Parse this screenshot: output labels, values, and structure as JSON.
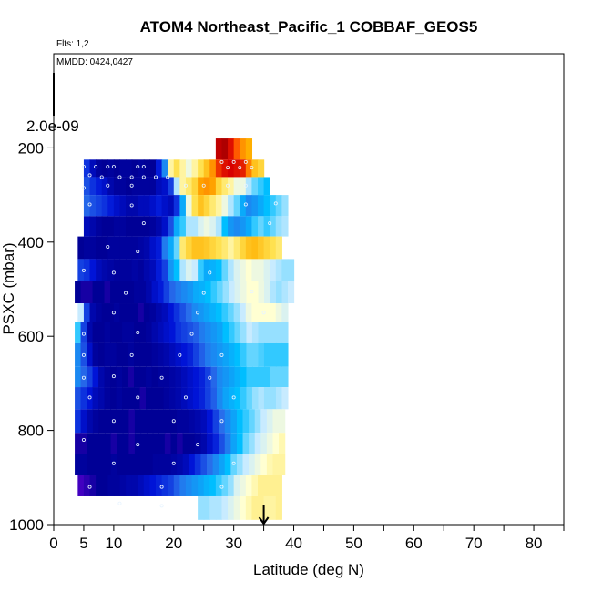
{
  "chart_data": {
    "type": "heatmap",
    "title": "ATOM4 Northeast_Pacific_1 COBBAF_GEOS5",
    "flights_label": "Flts: 1,2",
    "dates_label": "MMDD: 0424,0427",
    "scale_label": "2.0e-09",
    "xlabel": "Latitude (deg N)",
    "ylabel": "PSXC (mbar)",
    "xlim": [
      0,
      85
    ],
    "ylim": [
      1000,
      0
    ],
    "x_ticks": [
      0,
      5,
      10,
      20,
      30,
      40,
      50,
      60,
      70,
      80
    ],
    "y_ticks": [
      200,
      400,
      600,
      800,
      1000
    ],
    "marker_arrow_lat": 35,
    "colormap": "blue-white-yellow-red",
    "value_range": [
      0,
      1
    ],
    "pressure_bands": [
      {
        "p_top": 180,
        "p_bottom": 225,
        "lat_from": 27,
        "lat_to": 33,
        "values": [
          0.95,
          0.97,
          0.9,
          0.8,
          0.72,
          0.68
        ]
      },
      {
        "p_top": 225,
        "p_bottom": 262,
        "lat_from": 5,
        "lat_to": 35,
        "values": [
          0.18,
          0.1,
          0.06,
          0.05,
          0.06,
          0.05,
          0.06,
          0.06,
          0.05,
          0.06,
          0.05,
          0.05,
          0.15,
          0.3,
          0.55,
          0.6,
          0.55,
          0.5,
          0.55,
          0.6,
          0.65,
          0.72,
          0.85,
          0.9,
          0.92,
          0.9,
          0.88,
          0.75,
          0.65,
          0.62
        ]
      },
      {
        "p_top": 262,
        "p_bottom": 300,
        "lat_from": 5,
        "lat_to": 36,
        "values": [
          0.22,
          0.18,
          0.15,
          0.12,
          0.08,
          0.06,
          0.06,
          0.05,
          0.06,
          0.06,
          0.06,
          0.06,
          0.1,
          0.12,
          0.2,
          0.45,
          0.55,
          0.58,
          0.62,
          0.7,
          0.72,
          0.7,
          0.62,
          0.58,
          0.55,
          0.5,
          0.5,
          0.45,
          0.42,
          0.4,
          0.38
        ]
      },
      {
        "p_top": 300,
        "p_bottom": 345,
        "lat_from": 5,
        "lat_to": 39,
        "values": [
          0.25,
          0.22,
          0.2,
          0.18,
          0.15,
          0.12,
          0.1,
          0.08,
          0.08,
          0.1,
          0.1,
          0.12,
          0.15,
          0.12,
          0.1,
          0.18,
          0.35,
          0.5,
          0.6,
          0.65,
          0.62,
          0.58,
          0.55,
          0.5,
          0.45,
          0.42,
          0.35,
          0.3,
          0.32,
          0.35,
          0.38,
          0.4,
          0.42,
          0.44
        ]
      },
      {
        "p_top": 345,
        "p_bottom": 388,
        "lat_from": 5,
        "lat_to": 39,
        "values": [
          0.1,
          0.08,
          0.06,
          0.05,
          0.05,
          0.06,
          0.06,
          0.05,
          0.05,
          0.05,
          0.05,
          0.06,
          0.08,
          0.12,
          0.22,
          0.35,
          0.4,
          0.45,
          0.45,
          0.48,
          0.5,
          0.48,
          0.45,
          0.38,
          0.32,
          0.3,
          0.32,
          0.35,
          0.4,
          0.42,
          0.4,
          0.42,
          0.44,
          0.45
        ]
      },
      {
        "p_top": 388,
        "p_bottom": 436,
        "lat_from": 4,
        "lat_to": 38,
        "values": [
          0.05,
          0.06,
          0.06,
          0.05,
          0.05,
          0.06,
          0.06,
          0.06,
          0.06,
          0.06,
          0.07,
          0.08,
          0.12,
          0.15,
          0.28,
          0.35,
          0.42,
          0.58,
          0.62,
          0.65,
          0.65,
          0.64,
          0.62,
          0.6,
          0.58,
          0.55,
          0.58,
          0.62,
          0.65,
          0.66,
          0.64,
          0.62,
          0.6,
          0.58
        ]
      },
      {
        "p_top": 436,
        "p_bottom": 482,
        "lat_from": 4,
        "lat_to": 40,
        "values": [
          0.2,
          0.18,
          0.14,
          0.1,
          0.08,
          0.07,
          0.06,
          0.06,
          0.06,
          0.07,
          0.06,
          0.08,
          0.1,
          0.15,
          0.2,
          0.32,
          0.38,
          0.45,
          0.48,
          0.46,
          0.4,
          0.35,
          0.36,
          0.38,
          0.42,
          0.45,
          0.48,
          0.5,
          0.52,
          0.5,
          0.5,
          0.48,
          0.46,
          0.45,
          0.44,
          0.44
        ]
      },
      {
        "p_top": 482,
        "p_bottom": 530,
        "lat_from": 3.5,
        "lat_to": 40,
        "values": [
          0.05,
          0.04,
          0.04,
          0.05,
          0.05,
          0.04,
          0.05,
          0.05,
          0.05,
          0.05,
          0.06,
          0.06,
          0.08,
          0.12,
          0.15,
          0.2,
          0.25,
          0.28,
          0.3,
          0.32,
          0.35,
          0.36,
          0.38,
          0.4,
          0.42,
          0.44,
          0.46,
          0.48,
          0.5,
          0.52,
          0.52,
          0.5,
          0.48,
          0.45,
          0.44,
          0.45,
          0.46
        ]
      },
      {
        "p_top": 530,
        "p_bottom": 570,
        "lat_from": 4,
        "lat_to": 39,
        "values": [
          0.46,
          0.2,
          0.08,
          0.06,
          0.05,
          0.05,
          0.06,
          0.05,
          0.05,
          0.05,
          0.04,
          0.05,
          0.06,
          0.08,
          0.1,
          0.14,
          0.18,
          0.22,
          0.26,
          0.3,
          0.32,
          0.34,
          0.36,
          0.38,
          0.4,
          0.42,
          0.44,
          0.46,
          0.5,
          0.52,
          0.52,
          0.52,
          0.52,
          0.5,
          0.48
        ]
      },
      {
        "p_top": 570,
        "p_bottom": 615,
        "lat_from": 3.5,
        "lat_to": 39,
        "values": [
          0.4,
          0.2,
          0.08,
          0.05,
          0.05,
          0.06,
          0.05,
          0.05,
          0.06,
          0.06,
          0.05,
          0.05,
          0.06,
          0.08,
          0.1,
          0.12,
          0.14,
          0.18,
          0.2,
          0.22,
          0.24,
          0.28,
          0.3,
          0.32,
          0.34,
          0.38,
          0.4,
          0.42,
          0.44,
          0.46,
          0.45,
          0.44,
          0.44,
          0.44,
          0.44,
          0.44
        ]
      },
      {
        "p_top": 615,
        "p_bottom": 665,
        "lat_from": 3.5,
        "lat_to": 39,
        "values": [
          0.3,
          0.22,
          0.12,
          0.06,
          0.05,
          0.06,
          0.06,
          0.05,
          0.05,
          0.06,
          0.05,
          0.05,
          0.05,
          0.06,
          0.07,
          0.08,
          0.1,
          0.12,
          0.14,
          0.16,
          0.2,
          0.24,
          0.28,
          0.3,
          0.32,
          0.34,
          0.36,
          0.38,
          0.4,
          0.42,
          0.42,
          0.41,
          0.4,
          0.4,
          0.4,
          0.4
        ]
      },
      {
        "p_top": 665,
        "p_bottom": 708,
        "lat_from": 3.5,
        "lat_to": 39,
        "values": [
          0.3,
          0.25,
          0.2,
          0.14,
          0.08,
          0.06,
          0.05,
          0.06,
          0.05,
          0.04,
          0.05,
          0.05,
          0.06,
          0.05,
          0.06,
          0.06,
          0.07,
          0.08,
          0.1,
          0.12,
          0.14,
          0.16,
          0.2,
          0.25,
          0.3,
          0.32,
          0.34,
          0.36,
          0.38,
          0.4,
          0.4,
          0.4,
          0.4,
          0.42,
          0.42,
          0.42
        ]
      },
      {
        "p_top": 708,
        "p_bottom": 755,
        "lat_from": 3.5,
        "lat_to": 39,
        "values": [
          0.22,
          0.18,
          0.14,
          0.1,
          0.08,
          0.06,
          0.05,
          0.06,
          0.05,
          0.05,
          0.05,
          0.04,
          0.05,
          0.05,
          0.05,
          0.06,
          0.07,
          0.08,
          0.1,
          0.12,
          0.14,
          0.16,
          0.2,
          0.24,
          0.3,
          0.34,
          0.36,
          0.38,
          0.4,
          0.42,
          0.44,
          0.45,
          0.44,
          0.44,
          0.45,
          0.46
        ]
      },
      {
        "p_top": 755,
        "p_bottom": 805,
        "lat_from": 3.5,
        "lat_to": 38.5,
        "values": [
          0.18,
          0.12,
          0.08,
          0.06,
          0.05,
          0.05,
          0.05,
          0.05,
          0.05,
          0.04,
          0.05,
          0.05,
          0.05,
          0.05,
          0.05,
          0.05,
          0.05,
          0.06,
          0.06,
          0.07,
          0.08,
          0.1,
          0.14,
          0.2,
          0.26,
          0.3,
          0.34,
          0.38,
          0.4,
          0.42,
          0.44,
          0.46,
          0.48,
          0.5,
          0.5
        ]
      },
      {
        "p_top": 805,
        "p_bottom": 850,
        "lat_from": 3.5,
        "lat_to": 38.5,
        "values": [
          0.04,
          0.04,
          0.05,
          0.05,
          0.05,
          0.05,
          0.04,
          0.05,
          0.05,
          0.04,
          0.05,
          0.05,
          0.05,
          0.05,
          0.05,
          0.04,
          0.05,
          0.04,
          0.05,
          0.05,
          0.06,
          0.08,
          0.12,
          0.16,
          0.22,
          0.28,
          0.34,
          0.38,
          0.42,
          0.44,
          0.46,
          0.48,
          0.5,
          0.52,
          0.54
        ]
      },
      {
        "p_top": 850,
        "p_bottom": 895,
        "lat_from": 3.5,
        "lat_to": 38.5,
        "values": [
          0.06,
          0.06,
          0.05,
          0.05,
          0.05,
          0.05,
          0.06,
          0.05,
          0.05,
          0.05,
          0.05,
          0.05,
          0.05,
          0.06,
          0.06,
          0.06,
          0.07,
          0.08,
          0.1,
          0.14,
          0.18,
          0.22,
          0.26,
          0.3,
          0.34,
          0.38,
          0.42,
          0.44,
          0.46,
          0.48,
          0.5,
          0.52,
          0.54,
          0.55,
          0.55
        ]
      },
      {
        "p_top": 895,
        "p_bottom": 940,
        "lat_from": 4,
        "lat_to": 38,
        "values": [
          0.02,
          0.03,
          0.04,
          0.05,
          0.05,
          0.06,
          0.06,
          0.07,
          0.08,
          0.08,
          0.1,
          0.12,
          0.14,
          0.16,
          0.18,
          0.2,
          0.24,
          0.28,
          0.3,
          0.32,
          0.34,
          0.36,
          0.38,
          0.4,
          0.42,
          0.44,
          0.48,
          0.5,
          0.52,
          0.54,
          0.56,
          0.56,
          0.56,
          0.56
        ]
      },
      {
        "p_top": 940,
        "p_bottom": 990,
        "lat_from": 24,
        "lat_to": 38,
        "values": [
          0.44,
          0.44,
          0.45,
          0.45,
          0.46,
          0.48,
          0.5,
          0.52,
          0.54,
          0.56,
          0.56,
          0.55,
          0.55,
          0.56
        ]
      }
    ],
    "sample_points": [
      {
        "lat": 5,
        "p": 240
      },
      {
        "lat": 7,
        "p": 240
      },
      {
        "lat": 9,
        "p": 240
      },
      {
        "lat": 10,
        "p": 240
      },
      {
        "lat": 14,
        "p": 240
      },
      {
        "lat": 15,
        "p": 240
      },
      {
        "lat": 6,
        "p": 258
      },
      {
        "lat": 8,
        "p": 262
      },
      {
        "lat": 11,
        "p": 262
      },
      {
        "lat": 13,
        "p": 262
      },
      {
        "lat": 15,
        "p": 262
      },
      {
        "lat": 17,
        "p": 262
      },
      {
        "lat": 19,
        "p": 262
      },
      {
        "lat": 28,
        "p": 230
      },
      {
        "lat": 30,
        "p": 230
      },
      {
        "lat": 32,
        "p": 230
      },
      {
        "lat": 29,
        "p": 242
      },
      {
        "lat": 31,
        "p": 242
      },
      {
        "lat": 33,
        "p": 242
      },
      {
        "lat": 5,
        "p": 285
      },
      {
        "lat": 9,
        "p": 280
      },
      {
        "lat": 13,
        "p": 280
      },
      {
        "lat": 22,
        "p": 280
      },
      {
        "lat": 25,
        "p": 280
      },
      {
        "lat": 29,
        "p": 280
      },
      {
        "lat": 32,
        "p": 280
      },
      {
        "lat": 6,
        "p": 320
      },
      {
        "lat": 13,
        "p": 322
      },
      {
        "lat": 32,
        "p": 320
      },
      {
        "lat": 37,
        "p": 318
      },
      {
        "lat": 15,
        "p": 360
      },
      {
        "lat": 36,
        "p": 360
      },
      {
        "lat": 9,
        "p": 410
      },
      {
        "lat": 14,
        "p": 420
      },
      {
        "lat": 5,
        "p": 460
      },
      {
        "lat": 10,
        "p": 465
      },
      {
        "lat": 26,
        "p": 465
      },
      {
        "lat": 12,
        "p": 508
      },
      {
        "lat": 25,
        "p": 508
      },
      {
        "lat": 33,
        "p": 505
      },
      {
        "lat": 10,
        "p": 550
      },
      {
        "lat": 24,
        "p": 550
      },
      {
        "lat": 35,
        "p": 550
      },
      {
        "lat": 5,
        "p": 595
      },
      {
        "lat": 14,
        "p": 592
      },
      {
        "lat": 23,
        "p": 595
      },
      {
        "lat": 5,
        "p": 640
      },
      {
        "lat": 13,
        "p": 640
      },
      {
        "lat": 21,
        "p": 640
      },
      {
        "lat": 28,
        "p": 640
      },
      {
        "lat": 5,
        "p": 688
      },
      {
        "lat": 10,
        "p": 685
      },
      {
        "lat": 18,
        "p": 688
      },
      {
        "lat": 26,
        "p": 688
      },
      {
        "lat": 6,
        "p": 730
      },
      {
        "lat": 14,
        "p": 730
      },
      {
        "lat": 22,
        "p": 730
      },
      {
        "lat": 30,
        "p": 730
      },
      {
        "lat": 10,
        "p": 780
      },
      {
        "lat": 20,
        "p": 780
      },
      {
        "lat": 28,
        "p": 780
      },
      {
        "lat": 5,
        "p": 820
      },
      {
        "lat": 14,
        "p": 830
      },
      {
        "lat": 24,
        "p": 830
      },
      {
        "lat": 10,
        "p": 870
      },
      {
        "lat": 20,
        "p": 870
      },
      {
        "lat": 30,
        "p": 870
      },
      {
        "lat": 6,
        "p": 920
      },
      {
        "lat": 18,
        "p": 920
      },
      {
        "lat": 28,
        "p": 920
      },
      {
        "lat": 11,
        "p": 955
      },
      {
        "lat": 18,
        "p": 960
      }
    ]
  }
}
